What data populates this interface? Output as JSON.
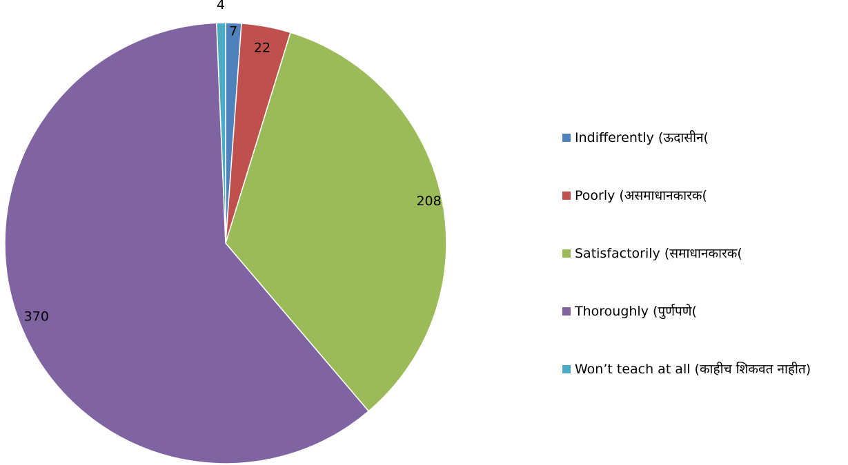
{
  "chart_data": {
    "type": "pie",
    "title": "",
    "slices": [
      {
        "label": "Indifferently (ऊदासीन(",
        "value": 7,
        "color": "#4F81BD"
      },
      {
        "label": "Poorly (असमाधानकारक(",
        "value": 22,
        "color": "#C0504D"
      },
      {
        "label": "Satisfactorily (समाधानकारक(",
        "value": 208,
        "color": "#9BBB59"
      },
      {
        "label": "Thoroughly (पुर्णपणे(",
        "value": 370,
        "color": "#8064A2"
      },
      {
        "label": "Won’t teach at all (काहीच शिकवत नाहीत)",
        "value": 4,
        "color": "#4BACC6"
      }
    ],
    "data_labels": [
      "7",
      "22",
      "208",
      "370",
      "4"
    ],
    "legend_position": "right"
  }
}
